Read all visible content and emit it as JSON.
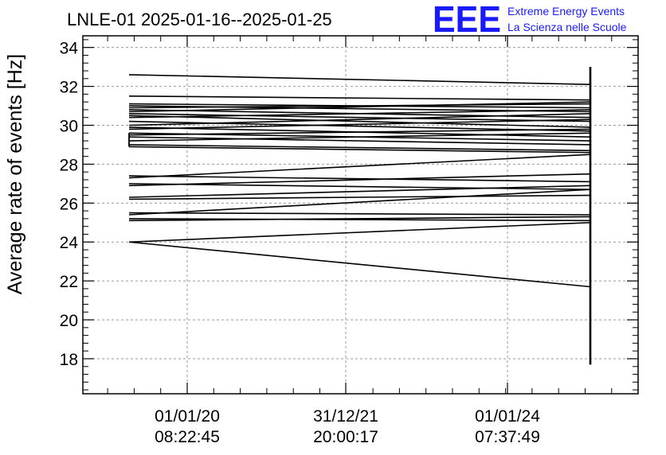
{
  "chart_data": {
    "type": "line",
    "title": "LNLE-01 2025-01-16--2025-01-25",
    "ylabel": "Average rate of events [Hz]",
    "xlabel": "",
    "ylim": [
      16.2,
      34.6
    ],
    "yticks": [
      18,
      20,
      22,
      24,
      26,
      28,
      30,
      32,
      34
    ],
    "x_tick_labels": [
      {
        "date": "01/01/20",
        "time": "08:22:45"
      },
      {
        "date": "31/12/21",
        "time": "20:00:17"
      },
      {
        "date": "01/01/24",
        "time": "07:37:49"
      }
    ],
    "grid": true,
    "line_color": "#000000",
    "segments": [
      [
        32.6,
        32.1
      ],
      [
        31.5,
        31.3
      ],
      [
        31.1,
        30.9
      ],
      [
        31.0,
        30.7
      ],
      [
        30.9,
        31.1
      ],
      [
        30.8,
        30.4
      ],
      [
        30.7,
        31.2
      ],
      [
        30.6,
        30.2
      ],
      [
        30.5,
        29.9
      ],
      [
        30.4,
        30.8
      ],
      [
        30.2,
        29.7
      ],
      [
        30.0,
        30.6
      ],
      [
        29.9,
        29.4
      ],
      [
        29.8,
        30.3
      ],
      [
        29.6,
        29.2
      ],
      [
        29.5,
        29.8
      ],
      [
        29.4,
        29.0
      ],
      [
        29.2,
        29.6
      ],
      [
        29.0,
        28.7
      ],
      [
        28.9,
        28.6
      ],
      [
        27.4,
        27.1
      ],
      [
        27.3,
        28.5
      ],
      [
        27.0,
        26.7
      ],
      [
        26.9,
        27.5
      ],
      [
        26.3,
        26.9
      ],
      [
        26.2,
        26.4
      ],
      [
        25.5,
        25.4
      ],
      [
        25.4,
        26.7
      ],
      [
        25.2,
        25.1
      ],
      [
        25.1,
        25.3
      ],
      [
        24.0,
        21.7
      ],
      [
        24.0,
        25.0
      ]
    ],
    "vertical_spans": [
      {
        "position": "left",
        "ymin": 28.9,
        "ymax": 29.6
      },
      {
        "position": "right",
        "ymin": 17.7,
        "ymax": 33.0
      }
    ]
  },
  "logo": {
    "mark": "EEE",
    "line1": "Extreme Energy Events",
    "line2": "La Scienza nelle Scuole",
    "color": "#1a1aff"
  }
}
